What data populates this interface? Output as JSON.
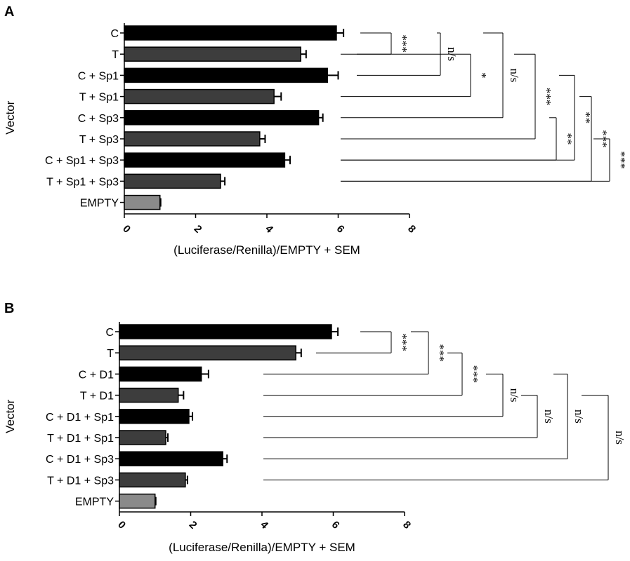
{
  "chart_data": [
    {
      "type": "bar",
      "orientation": "horizontal",
      "panel_label": "A",
      "categories": [
        "C",
        "T",
        "C + Sp1",
        "T + Sp1",
        "C + Sp3",
        "T + Sp3",
        "C + Sp1 + Sp3",
        "T + Sp1 + Sp3",
        "EMPTY"
      ],
      "values": [
        5.95,
        4.95,
        5.7,
        4.2,
        5.45,
        3.8,
        4.5,
        2.7,
        1.0
      ],
      "errors": [
        0.2,
        0.15,
        0.3,
        0.2,
        0.12,
        0.15,
        0.15,
        0.12,
        0.02
      ],
      "bar_colors": [
        "#000000",
        "#3d3d3d",
        "#000000",
        "#3d3d3d",
        "#000000",
        "#3d3d3d",
        "#000000",
        "#3d3d3d",
        "#8a8a8a"
      ],
      "xlabel": "(Luciferase/Renilla)/EMPTY + SEM",
      "ylabel": "Vector",
      "xlim": [
        0,
        8
      ],
      "xticks": [
        "0",
        "2",
        "4",
        "6",
        "8"
      ],
      "grid": false,
      "comparisons": [
        {
          "a": 0,
          "b": 1,
          "label": "***"
        },
        {
          "a": 0,
          "b": 2,
          "label": "n/s"
        },
        {
          "a": 1,
          "b": 3,
          "label": "*"
        },
        {
          "a": 0,
          "b": 4,
          "label": "n/s"
        },
        {
          "a": 1,
          "b": 5,
          "label": "***"
        },
        {
          "a": 4,
          "b": 6,
          "label": "**"
        },
        {
          "a": 2,
          "b": 6,
          "label": "**"
        },
        {
          "a": 3,
          "b": 7,
          "label": "***"
        },
        {
          "a": 5,
          "b": 7,
          "label": "***"
        }
      ]
    },
    {
      "type": "bar",
      "orientation": "horizontal",
      "panel_label": "B",
      "categories": [
        "C",
        "T",
        "C + D1",
        "T + D1",
        "C + D1 + Sp1",
        "T + D1 + Sp1",
        "C + D1 + Sp3",
        "T + D1 + Sp3",
        "EMPTY"
      ],
      "values": [
        5.95,
        4.95,
        2.3,
        1.65,
        1.95,
        1.3,
        2.9,
        1.85,
        1.0
      ],
      "errors": [
        0.18,
        0.15,
        0.2,
        0.15,
        0.1,
        0.06,
        0.12,
        0.06,
        0.02
      ],
      "bar_colors": [
        "#000000",
        "#3d3d3d",
        "#000000",
        "#3d3d3d",
        "#000000",
        "#3d3d3d",
        "#000000",
        "#3d3d3d",
        "#8a8a8a"
      ],
      "xlabel": "(Luciferase/Renilla)/EMPTY + SEM",
      "ylabel": "Vector",
      "xlim": [
        0,
        8
      ],
      "xticks": [
        "0",
        "2",
        "4",
        "6",
        "8"
      ],
      "grid": false,
      "comparisons": [
        {
          "a": 0,
          "b": 1,
          "label": "***"
        },
        {
          "a": 0,
          "b": 2,
          "label": "***"
        },
        {
          "a": 1,
          "b": 3,
          "label": "***"
        },
        {
          "a": 2,
          "b": 4,
          "label": "n/s"
        },
        {
          "a": 3,
          "b": 5,
          "label": "n/s"
        },
        {
          "a": 2,
          "b": 6,
          "label": "n/s"
        },
        {
          "a": 3,
          "b": 7,
          "label": "n/s"
        }
      ]
    }
  ]
}
